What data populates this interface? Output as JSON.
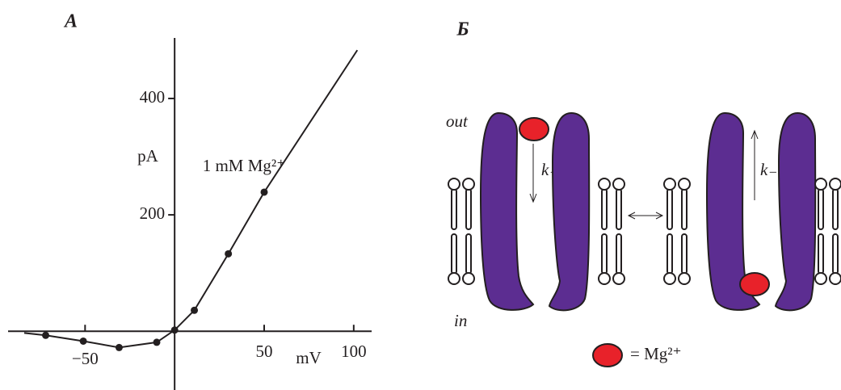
{
  "chart_data": {
    "type": "line",
    "panel_label": "А",
    "x": [
      -84,
      -72,
      -51,
      -31,
      -10,
      0,
      11,
      30,
      50,
      102
    ],
    "values": [
      -3,
      -7,
      -17,
      -28,
      -19,
      2,
      36,
      133,
      239,
      483
    ],
    "markers": [
      false,
      true,
      true,
      true,
      true,
      true,
      true,
      true,
      true,
      false
    ],
    "color": "#231f20",
    "xlim": [
      -93,
      110
    ],
    "ylim": [
      -101,
      504
    ],
    "xticks": [
      {
        "value": -50,
        "label": "−50"
      },
      50,
      100
    ],
    "yticks": [
      200,
      400
    ],
    "x_label": "mV",
    "y_label": "pA",
    "annotation": "1 mM Mg²⁺"
  },
  "diagram": {
    "panel_label": "Б",
    "out": "out",
    "in": "in",
    "k_plus": "k₊",
    "k_minus": "k₋",
    "legend": "= Mg²⁺"
  }
}
